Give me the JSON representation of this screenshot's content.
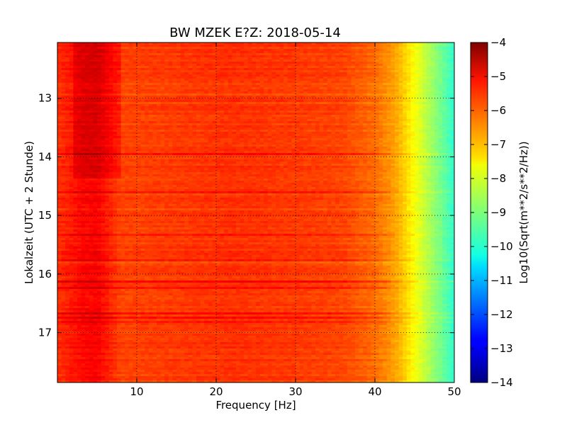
{
  "chart_data": {
    "type": "heatmap",
    "title": "BW MZEK E?Z: 2018-05-14",
    "xlabel": "Frequency [Hz]",
    "ylabel": "Lokalzeit (UTC + 2 Stunde)",
    "colorbar_label": "Log10(Sqrt(m**2/s**2/Hz))",
    "xlim": [
      0,
      50
    ],
    "ylim": [
      12.05,
      17.85
    ],
    "y_direction": "top-to-bottom",
    "x_ticks": [
      10,
      20,
      30,
      40,
      50
    ],
    "x_tick_labels": [
      "10",
      "20",
      "30",
      "40",
      "50"
    ],
    "y_ticks": [
      13,
      14,
      15,
      16,
      17
    ],
    "y_tick_labels": [
      "13",
      "14",
      "15",
      "16",
      "17"
    ],
    "clim": [
      -14,
      -4
    ],
    "colorbar_ticks": [
      -4,
      -5,
      -6,
      -7,
      -8,
      -9,
      -10,
      -11,
      -12,
      -13,
      -14
    ],
    "colorbar_tick_labels": [
      "−4",
      "−5",
      "−6",
      "−7",
      "−8",
      "−9",
      "−10",
      "−11",
      "−12",
      "−13",
      "−14"
    ],
    "colormap": "jet",
    "grid": true,
    "spectrum_profile": {
      "frequency_hz": [
        0,
        3,
        5,
        8,
        15,
        22,
        30,
        36,
        38,
        40,
        42,
        43,
        44,
        45,
        46,
        47,
        48,
        49,
        50
      ],
      "log10_amplitude": [
        -5.7,
        -5.3,
        -5.2,
        -5.9,
        -5.8,
        -5.7,
        -5.8,
        -5.9,
        -6.1,
        -6.3,
        -6.7,
        -7.0,
        -7.4,
        -7.8,
        -8.2,
        -8.6,
        -9.0,
        -9.4,
        -9.8
      ]
    },
    "annotations": []
  }
}
